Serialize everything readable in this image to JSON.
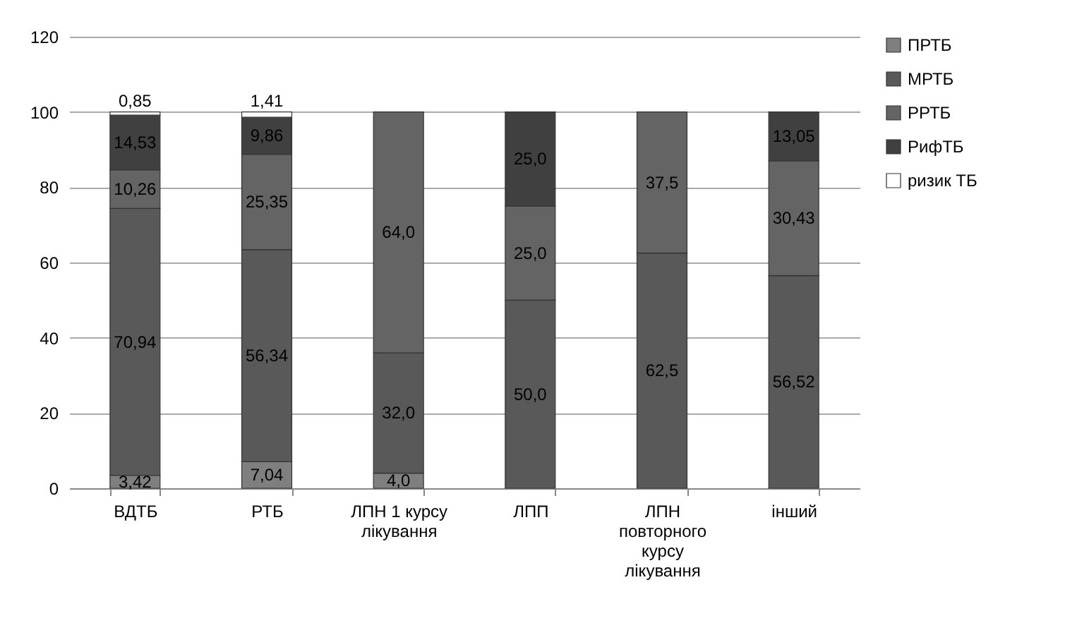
{
  "chart_data": {
    "type": "bar",
    "stacked": true,
    "categories": [
      "ВДТБ",
      "РТБ",
      "ЛПН 1 курсу лікування",
      "ЛПП",
      "ЛПН повторного курсу лікування",
      "інший"
    ],
    "series": [
      {
        "name": "ПРТБ",
        "color": "#7f7f7f",
        "values": [
          3.42,
          7.04,
          4.0,
          null,
          null,
          null
        ],
        "value_labels": [
          "3,42",
          "7,04",
          "4,0",
          null,
          null,
          null
        ]
      },
      {
        "name": "МРТБ",
        "color": "#595959",
        "values": [
          70.94,
          56.34,
          32.0,
          50.0,
          62.5,
          56.52
        ],
        "value_labels": [
          "70,94",
          "56,34",
          "32,0",
          "50,0",
          "62,5",
          "56,52"
        ]
      },
      {
        "name": "РРТБ",
        "color": "#646464",
        "values": [
          10.26,
          25.35,
          64.0,
          25.0,
          37.5,
          30.43
        ],
        "value_labels": [
          "10,26",
          "25,35",
          "64,0",
          "25,0",
          "37,5",
          "30,43"
        ]
      },
      {
        "name": "РифТБ",
        "color": "#404040",
        "values": [
          14.53,
          9.86,
          null,
          25.0,
          null,
          13.05
        ],
        "value_labels": [
          "14,53",
          "9,86",
          null,
          "25,0",
          null,
          "13,05"
        ]
      },
      {
        "name": "ризик ТБ",
        "color": "#ffffff",
        "values": [
          0.85,
          1.41,
          null,
          null,
          null,
          null
        ],
        "value_labels": [
          "0,85",
          "1,41",
          null,
          null,
          null,
          null
        ]
      }
    ],
    "ylim": [
      0,
      120
    ],
    "yticks": [
      0,
      20,
      40,
      60,
      80,
      100,
      120
    ],
    "grid": "y",
    "legend": "right"
  }
}
